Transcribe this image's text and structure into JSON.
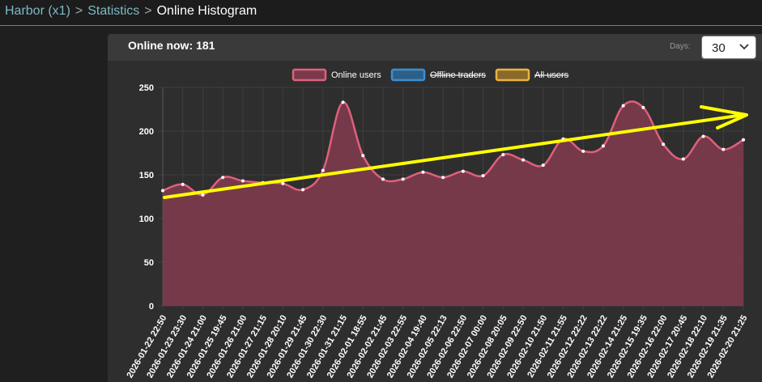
{
  "breadcrumb": {
    "items": [
      {
        "label": "Harbor (x1)"
      },
      {
        "label": "Statistics"
      }
    ],
    "separator": ">",
    "current": "Online Histogram"
  },
  "panel": {
    "online_label": "Online now:",
    "online_value": "181",
    "days_label": "Days:",
    "days_value": "30"
  },
  "legend": [
    {
      "label": "Online users",
      "color": "#e0607c",
      "fill": "#7a3a4c",
      "hidden": false
    },
    {
      "label": "Offline traders",
      "color": "#3a8fd6",
      "fill": "#2f5f86",
      "hidden": true
    },
    {
      "label": "All users",
      "color": "#e8b440",
      "fill": "#8a6a2a",
      "hidden": true
    }
  ],
  "chart_data": {
    "type": "area",
    "series": [
      {
        "name": "Online users",
        "color": "#e0607c",
        "values": [
          132,
          139,
          127,
          147,
          143,
          141,
          140,
          133,
          155,
          233,
          172,
          145,
          145,
          153,
          147,
          154,
          149,
          173,
          167,
          161,
          191,
          177,
          183,
          229,
          227,
          185,
          168,
          194,
          179,
          190
        ]
      }
    ],
    "categories": [
      "2026-01-22 22:50",
      "2026-01-23 23:30",
      "2026-01-24 21:00",
      "2026-01-25 19:45",
      "2026-01-26 21:00",
      "2026-01-27 21:15",
      "2026-01-28 20:10",
      "2026-01-29 21:45",
      "2026-01-30 22:30",
      "2026-01-31 21:15",
      "2026-02-01 18:55",
      "2026-02-02 21:45",
      "2026-02-03 22:55",
      "2026-02-04 19:40",
      "2026-02-05 22:13",
      "2026-02-06 22:50",
      "2026-02-07 00:00",
      "2026-02-08 20:05",
      "2026-02-09 22:50",
      "2026-02-10 21:50",
      "2026-02-11 21:55",
      "2026-02-12 22:22",
      "2026-02-13 22:22",
      "2026-02-14 21:25",
      "2026-02-15 19:35",
      "2026-02-16 22:00",
      "2026-02-17 20:45",
      "2026-02-18 22:10",
      "2026-02-19 21:35",
      "2026-02-20 21:25"
    ],
    "yticks": [
      0,
      50,
      100,
      150,
      200,
      250
    ],
    "ylim": [
      0,
      250
    ],
    "grid": true,
    "legend_position": "top",
    "colors": {
      "annotation": "#ffff00",
      "grid": "#3f3f3f",
      "axis_text": "#ffffff"
    }
  }
}
